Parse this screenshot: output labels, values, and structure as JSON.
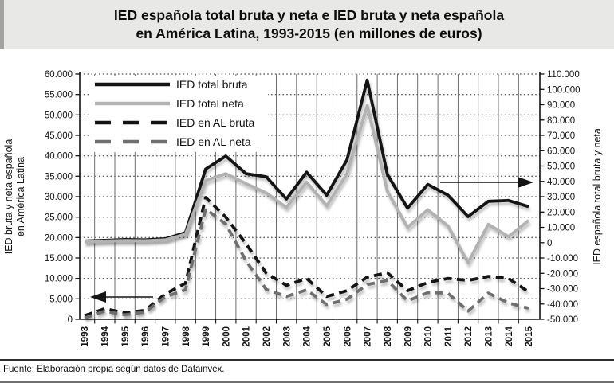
{
  "title": {
    "line1": "IED española total bruta y neta e IED bruta y neta española",
    "line2": "en América Latina, 1993-2015 (en millones de euros)"
  },
  "footer": {
    "source": "Fuente: Elaboración propia según datos de Datainvex."
  },
  "chart_data": {
    "type": "line",
    "x": [
      "1993",
      "1994",
      "1995",
      "1996",
      "1997",
      "1998",
      "1999",
      "2000",
      "2001",
      "2002",
      "2003",
      "2004",
      "2005",
      "2006",
      "2007",
      "2008",
      "2009",
      "2010",
      "2011",
      "2012",
      "2013",
      "2014",
      "2015"
    ],
    "series": [
      {
        "name": "IED total bruta",
        "axis": "right",
        "style": "solid",
        "color": "#141414",
        "values": [
          1000,
          1500,
          2000,
          1800,
          2500,
          6500,
          48000,
          56500,
          45000,
          43000,
          28500,
          46000,
          31000,
          54000,
          106000,
          44500,
          22500,
          38000,
          31000,
          17000,
          27000,
          27500,
          23500
        ]
      },
      {
        "name": "IED total neta",
        "axis": "right",
        "style": "solid",
        "color": "#b2b2b2",
        "values": [
          500,
          1000,
          1300,
          1200,
          1800,
          5500,
          40500,
          45000,
          38500,
          32500,
          23000,
          39500,
          24000,
          45000,
          89500,
          33500,
          10000,
          21500,
          11000,
          -13000,
          12000,
          4000,
          14500
        ]
      },
      {
        "name": "IED en AL bruta",
        "axis": "left",
        "style": "dashed",
        "color": "#141414",
        "values": [
          900,
          2600,
          1600,
          2200,
          6200,
          8800,
          29800,
          25000,
          18500,
          11300,
          8300,
          10000,
          5600,
          7000,
          10300,
          11400,
          7000,
          9000,
          10000,
          9500,
          10500,
          10000,
          6700
        ]
      },
      {
        "name": "IED en AL neta",
        "axis": "left",
        "style": "dashed",
        "color": "#6f6f6f",
        "values": [
          300,
          2000,
          1100,
          1800,
          5500,
          7200,
          27000,
          23300,
          14300,
          7300,
          5600,
          7200,
          3600,
          4900,
          8500,
          9500,
          4500,
          6500,
          6400,
          2000,
          6400,
          4000,
          2700
        ]
      }
    ],
    "left_axis": {
      "title_line1": "IED bruta y neta española",
      "title_line2": "en América Latina",
      "min": 0,
      "max": 60000,
      "step": 5000,
      "tick_labels": [
        "0",
        "5.000",
        "10.000",
        "15.000",
        "20.000",
        "25.000",
        "30.000",
        "35.000",
        "40.000",
        "45.000",
        "50.000",
        "55.000",
        "60.000"
      ]
    },
    "right_axis": {
      "title": "IED española total bruta y neta",
      "min": -50000,
      "max": 110000,
      "step": 10000,
      "tick_labels": [
        "-50.000",
        "-40.000",
        "-30.000",
        "-20.000",
        "-10.000",
        "0",
        "10.000",
        "20.000",
        "30.000",
        "40.000",
        "50.000",
        "60.000",
        "70.000",
        "80.000",
        "90.000",
        "100.000",
        "110.000"
      ]
    },
    "legend_position": "top-left",
    "grid": {
      "horizontal": "dotted",
      "vertical": "solid"
    },
    "annotations": {
      "left_arrow": "dashed series read on left axis",
      "right_arrow": "solid series read on right axis"
    }
  }
}
